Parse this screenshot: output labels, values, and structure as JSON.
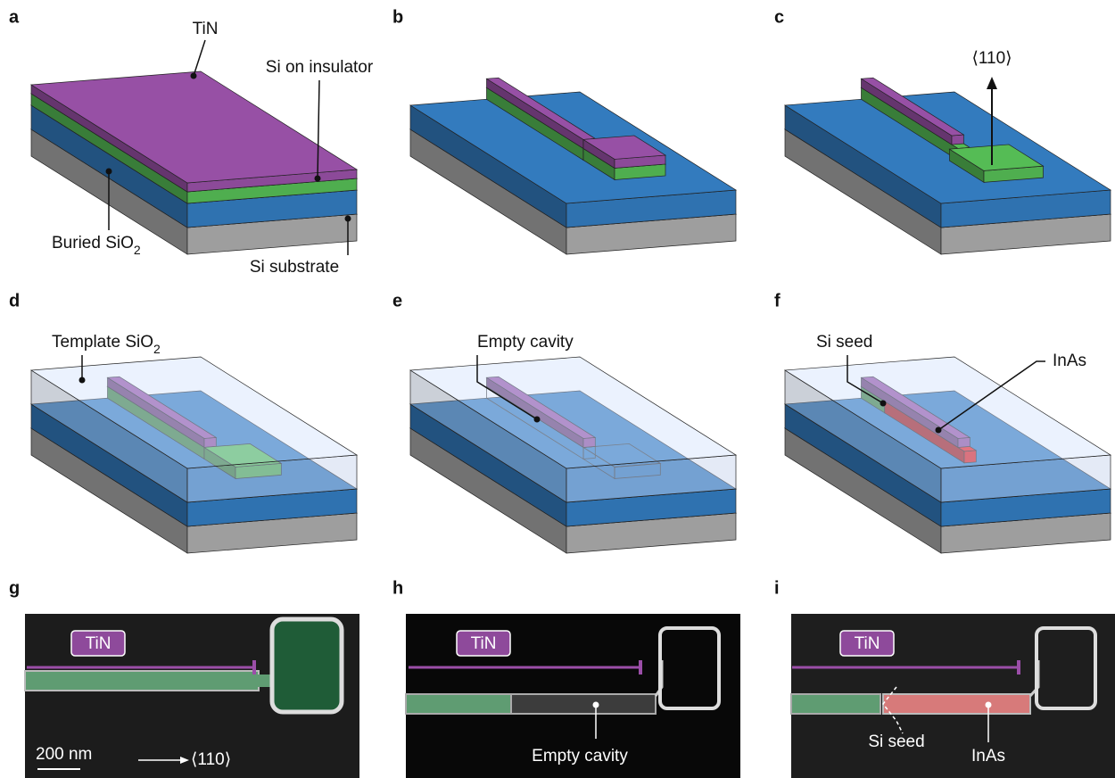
{
  "panels": {
    "a": {
      "letter": "a",
      "tin": "TiN",
      "soi": "Si on insulator",
      "box": "Buried SiO",
      "box_sub": "2",
      "substrate": "Si substrate"
    },
    "b": {
      "letter": "b"
    },
    "c": {
      "letter": "c",
      "direction": "⟨110⟩"
    },
    "d": {
      "letter": "d",
      "template": "Template SiO",
      "template_sub": "2"
    },
    "e": {
      "letter": "e",
      "cavity": "Empty cavity"
    },
    "f": {
      "letter": "f",
      "seed": "Si seed",
      "inas": "InAs"
    },
    "g": {
      "letter": "g",
      "tin": "TiN",
      "scale": "200 nm",
      "direction": "⟨110⟩"
    },
    "h": {
      "letter": "h",
      "tin": "TiN",
      "cavity": "Empty cavity"
    },
    "i": {
      "letter": "i",
      "tin": "TiN",
      "seed": "Si seed",
      "inas": "InAs"
    }
  }
}
